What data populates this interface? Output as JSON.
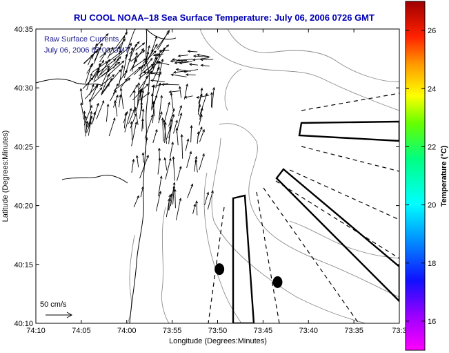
{
  "chart_data": {
    "type": "map",
    "title": "RU COOL  NOAA–18  Sea Surface Temperature:  July 06, 2006 0726 GMT",
    "xlabel": "Longitude (Degrees:Minutes)",
    "ylabel": "Latitude (Degrees:Minutes)",
    "x_ticks": [
      "74:10",
      "74:05",
      "74:00",
      "73:55",
      "73:50",
      "73:45",
      "73:40",
      "73:35",
      "73:3"
    ],
    "y_ticks": [
      "40:10",
      "40:15",
      "40:20",
      "40:25",
      "40:30",
      "40:35"
    ],
    "xlim_minutes_west": [
      10,
      30
    ],
    "ylim_minutes_north": [
      10,
      35
    ],
    "legend": {
      "line1": "Raw Surface Currents",
      "line2": "July 06, 2006 07:00 GMT"
    },
    "scale_label": "50 cm/s",
    "colorbar": {
      "label": "Temperature (°C)",
      "ticks": [
        "16",
        "18",
        "20",
        "22",
        "24",
        "26"
      ],
      "range": [
        15,
        27
      ]
    },
    "markers": [
      {
        "lon_min": 0.1,
        "lat_min": 14.6
      },
      {
        "lon_min": 3.3,
        "lat_min": 13.5
      }
    ]
  },
  "colors": {
    "title": "#0000b4",
    "legend_text": "#1a1a8c",
    "contour": "#8c8c8c",
    "vector": "#000000"
  }
}
